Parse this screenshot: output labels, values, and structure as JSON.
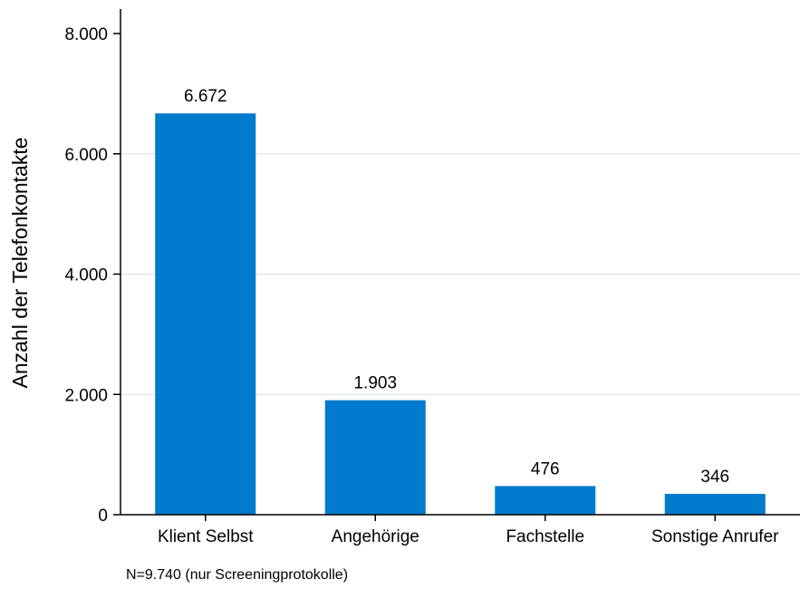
{
  "chart_data": {
    "type": "bar",
    "categories": [
      "Klient Selbst",
      "Angehörige",
      "Fachstelle",
      "Sonstige Anrufer"
    ],
    "values": [
      6672,
      1903,
      476,
      346
    ],
    "value_labels": [
      "6.672",
      "1.903",
      "476",
      "346"
    ],
    "ylabel": "Anzahl der Telefonkontakte",
    "xlabel": "",
    "ylim": [
      0,
      8000
    ],
    "yticks": [
      0,
      2000,
      4000,
      6000,
      8000
    ],
    "ytick_labels": [
      "0",
      "2.000",
      "4.000",
      "6.000",
      "8.000"
    ],
    "grid": "horizontal",
    "legend": "none",
    "bar_color": "#007ACC",
    "grid_color": "#DDDDDD"
  },
  "note": "N=9.740 (nur Screeningprotokolle)"
}
